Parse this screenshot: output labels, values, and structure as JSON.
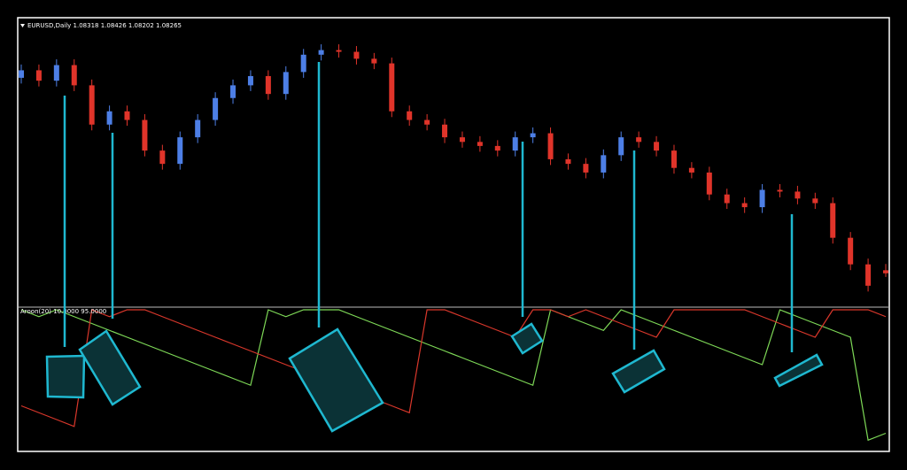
{
  "chart_data": [
    {
      "type": "candlestick",
      "title": "EURUSD,Daily  1.08318 1.08426 1.08202 1.08265",
      "up_color": "#4d7fe6",
      "down_color": "#e0342a",
      "ylim": [
        1.0771,
        1.1266
      ],
      "open": [
        1.1165,
        1.1178,
        1.116,
        1.1187,
        1.1152,
        1.1084,
        1.1107,
        1.1092,
        1.1039,
        1.1016,
        1.1062,
        1.1092,
        1.113,
        1.1152,
        1.1168,
        1.1137,
        1.1175,
        1.1205,
        1.1213,
        1.121,
        1.1198,
        1.119,
        1.1107,
        1.1092,
        1.1084,
        1.1062,
        1.1054,
        1.1047,
        1.1039,
        1.1062,
        1.1069,
        1.1024,
        1.1016,
        1.1001,
        1.1031,
        1.1062,
        1.1054,
        1.1039,
        1.1009,
        1.1001,
        1.0963,
        1.0948,
        1.0941,
        1.0971,
        1.0968,
        1.0956,
        1.0948,
        1.0888,
        1.0842,
        1.08318
      ],
      "high": [
        1.1188,
        1.1188,
        1.1197,
        1.1197,
        1.1162,
        1.1117,
        1.1117,
        1.1102,
        1.1049,
        1.1072,
        1.1102,
        1.114,
        1.1162,
        1.1178,
        1.1178,
        1.1185,
        1.1215,
        1.1223,
        1.1223,
        1.122,
        1.1208,
        1.12,
        1.1117,
        1.1102,
        1.1094,
        1.1072,
        1.1064,
        1.1057,
        1.1072,
        1.1079,
        1.1079,
        1.1034,
        1.1026,
        1.1041,
        1.1072,
        1.1072,
        1.1064,
        1.1049,
        1.1019,
        1.1011,
        1.0973,
        1.0958,
        1.0981,
        1.0981,
        1.0978,
        1.0966,
        1.0958,
        1.0898,
        1.0852,
        1.08426
      ],
      "low": [
        1.1155,
        1.115,
        1.115,
        1.1142,
        1.1074,
        1.1074,
        1.1082,
        1.1029,
        1.1006,
        1.1006,
        1.1052,
        1.1082,
        1.112,
        1.1142,
        1.1127,
        1.1127,
        1.1165,
        1.1195,
        1.12,
        1.1188,
        1.118,
        1.1097,
        1.1082,
        1.1074,
        1.1052,
        1.1044,
        1.1037,
        1.1029,
        1.1029,
        1.1052,
        1.1014,
        1.1006,
        1.0991,
        1.0991,
        1.1021,
        1.1044,
        1.1029,
        1.0999,
        1.0991,
        1.0953,
        1.0938,
        1.0931,
        1.0931,
        1.0958,
        1.0946,
        1.0938,
        1.0878,
        1.0832,
        1.0795,
        1.08202
      ],
      "close": [
        1.1178,
        1.116,
        1.1187,
        1.1152,
        1.1084,
        1.1107,
        1.1092,
        1.1039,
        1.1016,
        1.1062,
        1.1092,
        1.113,
        1.1152,
        1.1168,
        1.1137,
        1.1175,
        1.1205,
        1.1213,
        1.121,
        1.1198,
        1.119,
        1.1107,
        1.1092,
        1.1084,
        1.1062,
        1.1054,
        1.1047,
        1.1039,
        1.1062,
        1.1069,
        1.1024,
        1.1016,
        1.1001,
        1.1031,
        1.1062,
        1.1054,
        1.1039,
        1.1009,
        1.1001,
        1.0963,
        1.0948,
        1.0941,
        1.0971,
        1.0968,
        1.0956,
        1.0948,
        1.0888,
        1.0842,
        1.0805,
        1.08265
      ]
    },
    {
      "type": "line",
      "title": "Aroon(20) 10.0000 95.0000",
      "ylim": [
        0,
        100
      ],
      "series": [
        {
          "color": "#7ed957",
          "values": [
            100,
            95,
            100,
            95,
            90,
            85,
            80,
            75,
            70,
            65,
            60,
            55,
            50,
            45,
            100,
            95,
            100,
            100,
            100,
            95,
            90,
            85,
            80,
            75,
            70,
            65,
            60,
            55,
            50,
            45,
            100,
            95,
            90,
            85,
            100,
            95,
            90,
            85,
            80,
            75,
            70,
            65,
            60,
            100,
            95,
            90,
            85,
            80,
            5,
            10
          ]
        },
        {
          "color": "#d9372b",
          "values": [
            30,
            25,
            20,
            15,
            100,
            95,
            100,
            100,
            95,
            90,
            85,
            80,
            75,
            70,
            65,
            60,
            55,
            50,
            45,
            40,
            35,
            30,
            25,
            100,
            100,
            95,
            90,
            85,
            80,
            100,
            100,
            95,
            100,
            95,
            90,
            85,
            80,
            100,
            100,
            100,
            100,
            100,
            95,
            90,
            85,
            80,
            100,
            100,
            100,
            95
          ]
        }
      ]
    }
  ]
}
